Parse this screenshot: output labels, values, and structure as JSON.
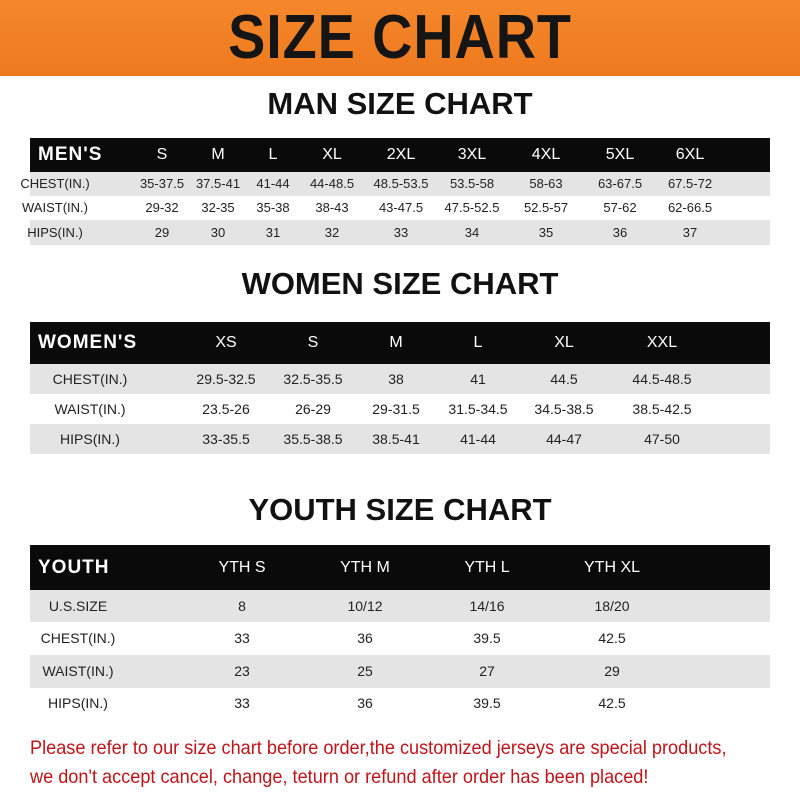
{
  "banner_title": "SIZE CHART",
  "men": {
    "title": "MAN SIZE CHART",
    "header": [
      "MEN'S",
      "S",
      "M",
      "L",
      "XL",
      "2XL",
      "3XL",
      "4XL",
      "5XL",
      "6XL"
    ],
    "rows": [
      [
        "CHEST(IN.)",
        "35-37.5",
        "37.5-41",
        "41-44",
        "44-48.5",
        "48.5-53.5",
        "53.5-58",
        "58-63",
        "63-67.5",
        "67.5-72"
      ],
      [
        "WAIST(IN.)",
        "29-32",
        "32-35",
        "35-38",
        "38-43",
        "43-47.5",
        "47.5-52.5",
        "52.5-57",
        "57-62",
        "62-66.5"
      ],
      [
        "HIPS(IN.)",
        "29",
        "30",
        "31",
        "32",
        "33",
        "34",
        "35",
        "36",
        "37"
      ]
    ]
  },
  "women": {
    "title": "WOMEN SIZE CHART",
    "header": [
      "WOMEN'S",
      "XS",
      "S",
      "M",
      "L",
      "XL",
      "XXL"
    ],
    "rows": [
      [
        "CHEST(IN.)",
        "29.5-32.5",
        "32.5-35.5",
        "38",
        "41",
        "44.5",
        "44.5-48.5"
      ],
      [
        "WAIST(IN.)",
        "23.5-26",
        "26-29",
        "29-31.5",
        "31.5-34.5",
        "34.5-38.5",
        "38.5-42.5"
      ],
      [
        "HIPS(IN.)",
        "33-35.5",
        "35.5-38.5",
        "38.5-41",
        "41-44",
        "44-47",
        "47-50"
      ]
    ]
  },
  "youth": {
    "title": "YOUTH SIZE CHART",
    "header": [
      "YOUTH",
      "YTH S",
      "YTH M",
      "YTH L",
      "YTH XL"
    ],
    "rows": [
      [
        "U.S.SIZE",
        "8",
        "10/12",
        "14/16",
        "18/20"
      ],
      [
        "CHEST(IN.)",
        "33",
        "36",
        "39.5",
        "42.5"
      ],
      [
        "WAIST(IN.)",
        "23",
        "25",
        "27",
        "29"
      ],
      [
        "HIPS(IN.)",
        "33",
        "36",
        "39.5",
        "42.5"
      ]
    ]
  },
  "note": {
    "line1": "Please refer to our size chart before order,the customized jerseys are special products,",
    "line2": "we don't accept cancel, change, teturn or refund after order has been placed!"
  },
  "colors": {
    "banner": "#f07d22",
    "header_row": "#0a0a0a",
    "stripe": "#e4e4e4",
    "note": "#c0141a"
  }
}
